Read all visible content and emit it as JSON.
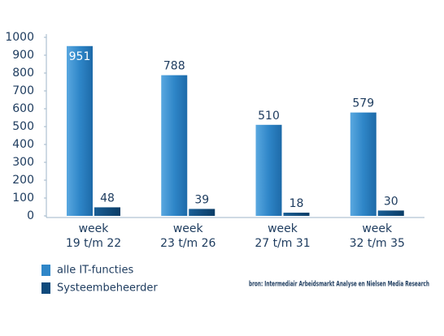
{
  "chart_data": {
    "type": "bar",
    "categories": [
      [
        "week",
        "19 t/m 22"
      ],
      [
        "week",
        "23 t/m 26"
      ],
      [
        "week",
        "27 t/m 31"
      ],
      [
        "week",
        "32 t/m 35"
      ]
    ],
    "series": [
      {
        "name": "alle IT-functies",
        "color": "#2f86c8",
        "values": [
          951,
          788,
          510,
          579
        ]
      },
      {
        "name": "Systeembeheerder",
        "color": "#0f4a7c",
        "values": [
          48,
          39,
          18,
          30
        ]
      }
    ],
    "ylim": [
      0,
      1000
    ],
    "yticks": [
      0,
      100,
      200,
      300,
      400,
      500,
      600,
      700,
      800,
      900,
      1000
    ],
    "source": "bron: Intermediair Arbeidsmarkt Analyse en Nielsen Media Research"
  }
}
